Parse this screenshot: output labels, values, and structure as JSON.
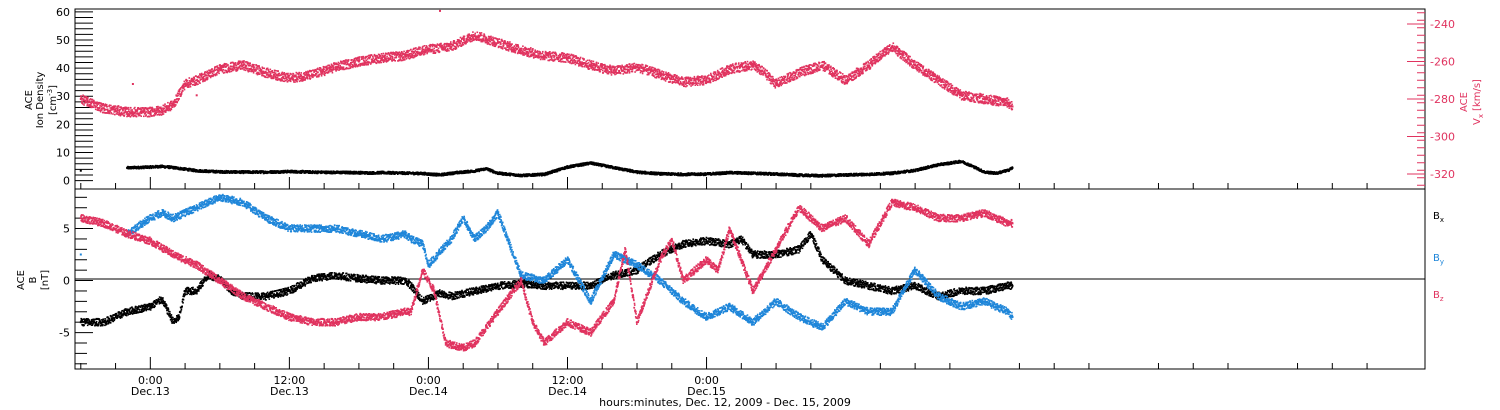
{
  "colors": {
    "black": "#000000",
    "pink": "#e0335f",
    "blue": "#1f86d9",
    "frame": "#000000"
  },
  "chart_data": [
    {
      "type": "scatter",
      "panel": "top",
      "ylabel_lines": [
        "ACE",
        "Ion Density",
        "[cm",
        "-3",
        "]"
      ],
      "ylabel_right_lines": [
        "ACE",
        "V",
        "x",
        "[km/s]"
      ],
      "ylim": [
        -3,
        61
      ],
      "ylim_right": [
        -328,
        -232
      ],
      "yticks": [
        0,
        10,
        20,
        30,
        40,
        50,
        60
      ],
      "yticks_right": [
        -240,
        -260,
        -280,
        -300,
        -320
      ],
      "xlim_hours": [
        -6.5,
        110.0
      ],
      "series": [
        {
          "name": "",
          "color_key": "black",
          "axis": "left",
          "x": [
            -6,
            -2,
            0,
            1,
            2,
            4,
            6,
            8,
            10,
            12,
            14,
            16,
            18,
            19,
            20,
            22.5,
            23.5,
            25,
            26,
            28,
            29,
            30,
            32,
            34,
            36,
            38,
            40,
            42,
            44,
            46,
            48,
            50,
            52,
            54,
            56,
            58,
            60,
            62,
            64,
            66,
            68,
            70,
            71,
            72,
            73,
            74,
            74.4
          ],
          "y": [
            3.5,
            4.5,
            4.8,
            5.0,
            4.6,
            3.5,
            3.1,
            3.0,
            3.0,
            3.2,
            3.0,
            2.9,
            2.8,
            2.7,
            2.8,
            2.6,
            2.5,
            2.0,
            2.6,
            3.4,
            4.2,
            2.6,
            1.8,
            2.2,
            4.8,
            6.2,
            4.6,
            3.0,
            2.4,
            2.2,
            2.3,
            2.8,
            2.6,
            2.3,
            1.9,
            1.7,
            2.0,
            2.2,
            2.6,
            3.6,
            5.6,
            6.8,
            5.0,
            3.0,
            2.6,
            3.6,
            4.5
          ]
        },
        {
          "name": "",
          "color_key": "pink",
          "axis": "right",
          "x": [
            -6,
            -4,
            -2,
            0,
            1,
            2,
            3,
            4,
            6,
            8,
            10,
            12,
            14,
            16,
            18,
            20,
            22,
            23,
            23.5,
            26,
            28,
            30,
            32,
            34,
            36,
            38,
            40,
            42,
            44,
            46,
            48,
            50,
            52,
            53,
            54,
            56,
            58,
            60,
            62,
            64,
            66,
            68,
            70,
            72,
            74,
            74.4
          ],
          "y": [
            -280,
            -285,
            -287,
            -287,
            -286,
            -283,
            -272,
            -270,
            -264,
            -262,
            -266,
            -269,
            -267,
            -263,
            -260,
            -258,
            -257,
            -255,
            -254,
            -252,
            -246,
            -250,
            -254,
            -257,
            -258,
            -262,
            -265,
            -263,
            -267,
            -271,
            -270,
            -264,
            -262,
            -266,
            -272,
            -266,
            -262,
            -270,
            -262,
            -252,
            -262,
            -270,
            -278,
            -280,
            -282,
            -284
          ]
        },
        {
          "name": "",
          "color_key": "pink",
          "axis": "right",
          "x": [
            -1.5,
            4.0,
            17.7,
            25.0
          ],
          "y": [
            -272,
            -278,
            -262,
            -233
          ]
        }
      ]
    },
    {
      "type": "scatter",
      "panel": "bottom",
      "ylabel_lines": [
        "ACE",
        "B",
        "[nT]"
      ],
      "ylim": [
        -8.5,
        8.8
      ],
      "yticks": [
        -5,
        0,
        5
      ],
      "xlim_hours": [
        -6.5,
        110.0
      ],
      "xticks_hours": [
        0,
        12,
        24,
        36,
        48
      ],
      "xtick_times": [
        "0:00",
        "12:00",
        "0:00",
        "12:00",
        "0:00"
      ],
      "xtick_dates": [
        "Dec.13",
        "Dec.13",
        "Dec.14",
        "Dec.14",
        "Dec.15"
      ],
      "xlabel": "hours:minutes, Dec. 12, 2009 - Dec. 15, 2009",
      "legend": [
        {
          "label": "B",
          "sub": "x",
          "color_key": "black"
        },
        {
          "label": "B",
          "sub": "y",
          "color_key": "blue"
        },
        {
          "label": "B",
          "sub": "z",
          "color_key": "pink"
        }
      ],
      "series": [
        {
          "name": "B_x",
          "color_key": "black",
          "x": [
            -6,
            -4,
            -2,
            0,
            1,
            2,
            2.5,
            3,
            4,
            5,
            6,
            7,
            8,
            10,
            12,
            14,
            16,
            18,
            20,
            22,
            22.5,
            23.5,
            25,
            26,
            28,
            30,
            32,
            34,
            36,
            38,
            40,
            42,
            44,
            46,
            48,
            50,
            51,
            52,
            54,
            56,
            57,
            58,
            60,
            62,
            64,
            66,
            68,
            70,
            72,
            74,
            74.4
          ],
          "y": [
            -4.0,
            -4.0,
            -3.0,
            -2.5,
            -1.8,
            -4.0,
            -3.5,
            -1.0,
            -1.0,
            0.5,
            0.2,
            -1.0,
            -1.5,
            -1.5,
            -1.0,
            0.2,
            0.5,
            0.2,
            0.0,
            0.0,
            -0.5,
            -2.0,
            -1.2,
            -1.5,
            -1.0,
            -0.5,
            -0.3,
            -0.5,
            -0.5,
            -0.5,
            0.5,
            1.0,
            2.5,
            3.5,
            3.8,
            3.5,
            4.0,
            2.5,
            2.5,
            3.0,
            4.5,
            2.0,
            0.0,
            -0.5,
            -1.0,
            -0.5,
            -1.5,
            -1.0,
            -1.0,
            -0.5,
            -0.5
          ]
        },
        {
          "name": "B_y",
          "color_key": "blue",
          "x": [
            -6,
            -2,
            0,
            1,
            2,
            4,
            6,
            8,
            10,
            12,
            14,
            16,
            18,
            20,
            21,
            22,
            22.5,
            23.5,
            24,
            26,
            27,
            28,
            29,
            30,
            32,
            34,
            36,
            38,
            40,
            42,
            44,
            46,
            48,
            50,
            52,
            54,
            56,
            58,
            60,
            62,
            64,
            66,
            68,
            70,
            72,
            74,
            74.4
          ],
          "y": [
            2.5,
            4.5,
            6.0,
            6.5,
            6.0,
            7.0,
            8.0,
            7.5,
            6.0,
            5.0,
            5.0,
            5.0,
            4.5,
            4.0,
            4.2,
            4.5,
            4.0,
            3.5,
            1.5,
            4.0,
            6.0,
            4.0,
            5.0,
            6.5,
            0.5,
            0.0,
            2.0,
            -2.0,
            2.5,
            1.5,
            0.0,
            -2.0,
            -3.5,
            -2.5,
            -4.0,
            -2.0,
            -3.5,
            -4.5,
            -2.0,
            -3.0,
            -3.0,
            1.0,
            -1.5,
            -2.5,
            -2.0,
            -3.0,
            -3.5
          ]
        },
        {
          "name": "B_z",
          "color_key": "pink",
          "x": [
            -6,
            -4,
            -2,
            0,
            2,
            4,
            6,
            8,
            10,
            12,
            14,
            16,
            18,
            20,
            22,
            22.5,
            23.5,
            24.5,
            25.5,
            27,
            28,
            30,
            32,
            33,
            34,
            36,
            38,
            40,
            41,
            42,
            44,
            45,
            46,
            48,
            49,
            50,
            51,
            52,
            54,
            56,
            58,
            60,
            62,
            64,
            66,
            68,
            70,
            72,
            74,
            74.4
          ],
          "y": [
            6.0,
            5.5,
            4.5,
            3.8,
            2.5,
            1.5,
            0.0,
            -1.5,
            -2.5,
            -3.5,
            -4.0,
            -4.0,
            -3.5,
            -3.5,
            -3.0,
            -3.0,
            1.0,
            -1.0,
            -6.0,
            -6.5,
            -6.0,
            -3.0,
            0.0,
            -4.0,
            -6.0,
            -4.0,
            -5.0,
            -2.0,
            3.0,
            -4.0,
            2.0,
            4.0,
            0.0,
            2.0,
            1.0,
            5.0,
            2.0,
            -1.0,
            3.0,
            7.0,
            5.0,
            6.0,
            3.5,
            7.5,
            7.0,
            6.0,
            6.0,
            6.5,
            5.5,
            5.5
          ]
        }
      ]
    }
  ]
}
